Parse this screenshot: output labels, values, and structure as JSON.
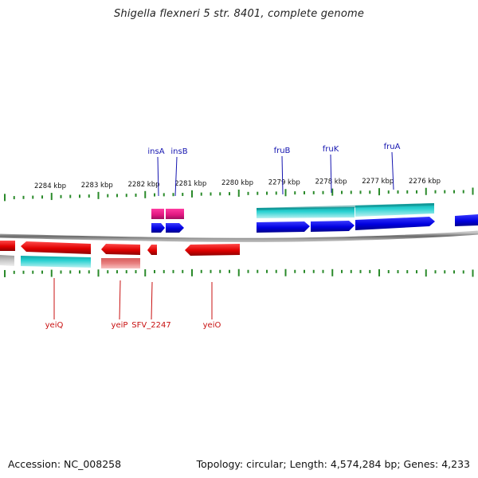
{
  "header": {
    "title": "Shigella flexneri 5 str. 8401, complete genome"
  },
  "footer": {
    "accession": "Accession: NC_008258",
    "topology": "Topology: circular; Length: 4,574,284 bp; Genes: 4,233"
  },
  "colors": {
    "tick": "#2a8a2a",
    "forward_cds": "#0a0ae6",
    "reverse_cds": "#e60a0a",
    "forward_label": "#1515b0",
    "reverse_label": "#c81010",
    "gene_teal": "#22c8c8",
    "mobile_element": "#e8248c",
    "pseudo_grey": "#b8b8b8",
    "pseudo_pink": "#e87a7a",
    "backbone": "#8a8a8a"
  },
  "scale": {
    "unit": "kbp",
    "ticks": [
      {
        "kbp": 2284,
        "label": "2284 kbp"
      },
      {
        "kbp": 2283,
        "label": "2283 kbp"
      },
      {
        "kbp": 2282,
        "label": "2282 kbp"
      },
      {
        "kbp": 2281,
        "label": "2281 kbp"
      },
      {
        "kbp": 2280,
        "label": "2280 kbp"
      },
      {
        "kbp": 2279,
        "label": "2279 kbp"
      },
      {
        "kbp": 2278,
        "label": "2278 kbp"
      },
      {
        "kbp": 2277,
        "label": "2277 kbp"
      },
      {
        "kbp": 2276,
        "label": "2276 kbp"
      }
    ]
  },
  "gene_labels": [
    {
      "name": "insA",
      "strand": "forward"
    },
    {
      "name": "insB",
      "strand": "forward"
    },
    {
      "name": "fruB",
      "strand": "forward"
    },
    {
      "name": "fruK",
      "strand": "forward"
    },
    {
      "name": "fruA",
      "strand": "forward"
    },
    {
      "name": "yeiQ",
      "strand": "reverse"
    },
    {
      "name": "yeiP",
      "strand": "reverse"
    },
    {
      "name": "SFV_2247",
      "strand": "reverse"
    },
    {
      "name": "yeiO",
      "strand": "reverse"
    }
  ]
}
